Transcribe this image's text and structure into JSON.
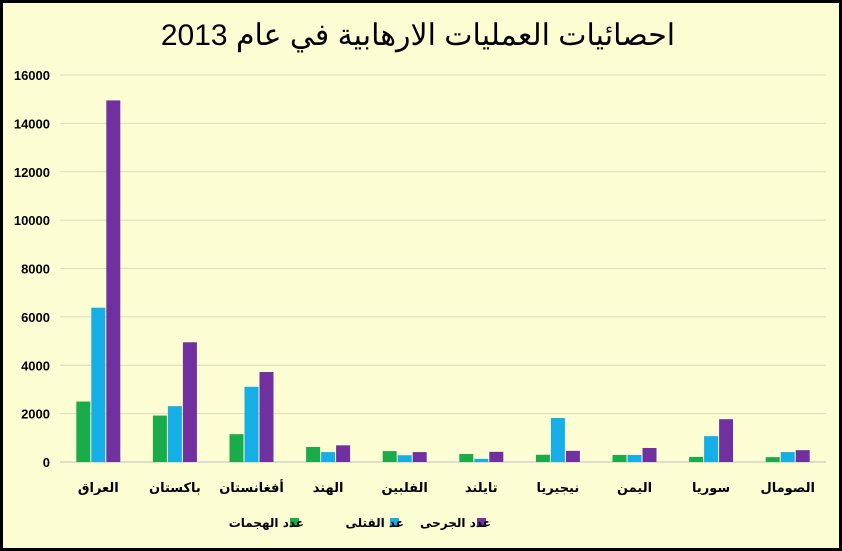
{
  "chart_data": {
    "type": "bar",
    "title": "احصائيات العمليات الارهابية في عام 2013",
    "categories": [
      "العراق",
      "باكستان",
      "أفغانستان",
      "الهند",
      "الفلبين",
      "تايلند",
      "نيجيريا",
      "اليمن",
      "سوريا",
      "الصومال"
    ],
    "series": [
      {
        "name": "عدد الهجمات",
        "color": "#1aab4a",
        "values": [
          2500,
          1920,
          1150,
          620,
          450,
          330,
          300,
          290,
          210,
          200
        ]
      },
      {
        "name": "عد القتلى",
        "color": "#16aee6",
        "values": [
          6380,
          2310,
          3110,
          410,
          280,
          130,
          1820,
          290,
          1070,
          410
        ]
      },
      {
        "name": "عدد الجرحى",
        "color": "#7030a0",
        "values": [
          14950,
          4950,
          3720,
          690,
          410,
          420,
          460,
          580,
          1770,
          490
        ]
      }
    ],
    "yticks": [
      "0",
      "2000",
      "4000",
      "6000",
      "8000",
      "10000",
      "12000",
      "14000",
      "16000"
    ],
    "ylim": [
      0,
      16000
    ],
    "grid": true,
    "legend_position": "bottom"
  }
}
